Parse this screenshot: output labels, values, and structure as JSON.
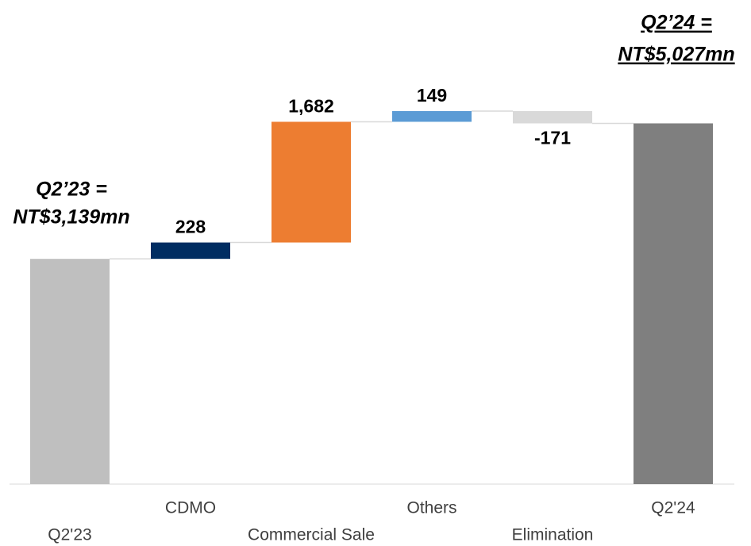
{
  "chart_data": {
    "type": "waterfall",
    "categories": [
      "Q2'23",
      "CDMO",
      "Commercial Sale",
      "Others",
      "Elimination",
      "Q2'24"
    ],
    "values": [
      3139,
      228,
      1682,
      149,
      -171,
      5027
    ],
    "value_labels": [
      null,
      "228",
      "1,682",
      "149",
      "-171",
      null
    ],
    "totals": [
      true,
      false,
      false,
      false,
      false,
      true
    ],
    "colors": [
      "#bfbfbf",
      "#002d62",
      "#ed7d31",
      "#5b9bd5",
      "#d9d9d9",
      "#7f7f7f"
    ],
    "annotations": [
      {
        "lines": [
          "Q2’23 =",
          "NT$3,139mn"
        ],
        "underline": false
      },
      {
        "lines": [
          "Q2’24 =",
          "NT$5,027mn"
        ],
        "underline": true
      }
    ]
  }
}
